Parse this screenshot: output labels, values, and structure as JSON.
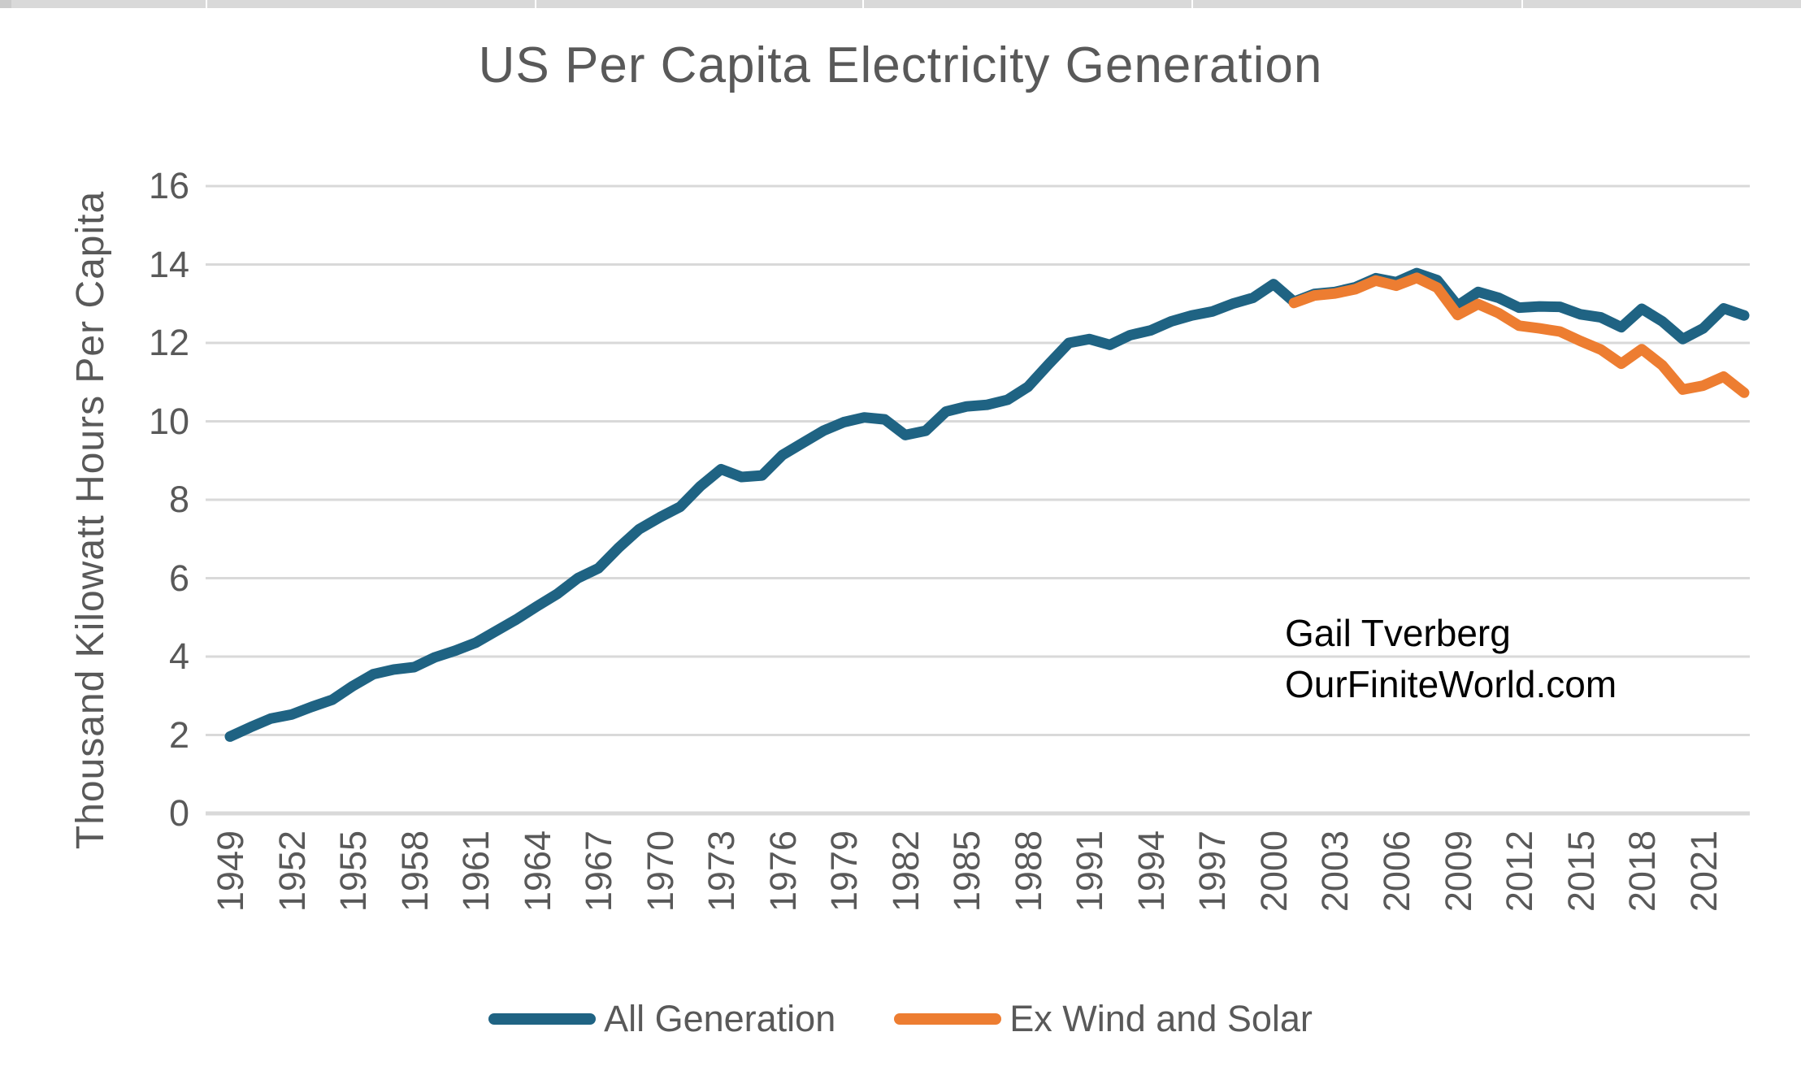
{
  "title": "US Per Capita Electricity Generation",
  "annotation": {
    "line1": "Gail Tverberg",
    "line2": "OurFiniteWorld.com"
  },
  "y_axis": {
    "title": "Thousand Kilowatt Hours Per Capita",
    "ticks": [
      0,
      2,
      4,
      6,
      8,
      10,
      12,
      14,
      16
    ]
  },
  "x_axis": {
    "ticks": [
      1949,
      1952,
      1955,
      1958,
      1961,
      1964,
      1967,
      1970,
      1973,
      1976,
      1979,
      1982,
      1985,
      1988,
      1991,
      1994,
      1997,
      2000,
      2003,
      2006,
      2009,
      2012,
      2015,
      2018,
      2021
    ]
  },
  "colors": {
    "all_generation": "#1F6383",
    "ex_wind_and_solar": "#ED7D31",
    "text_gray": "#595959",
    "annotation_text": "#000000",
    "gridline": "#D9D9D9",
    "top_strip": "#D9D9D9"
  },
  "chart_data": {
    "type": "line",
    "title": "US Per Capita Electricity Generation",
    "xlabel": "",
    "ylabel": "Thousand Kilowatt Hours Per Capita",
    "ylim": [
      0,
      16
    ],
    "y_tick_step": 2,
    "x_range": {
      "start": 1949,
      "end": 2023
    },
    "grid": "horizontal",
    "legend_position": "bottom",
    "series": [
      {
        "name": "All Generation",
        "color": "#1F6383",
        "start_year": 1949,
        "values": [
          1.96,
          2.2,
          2.42,
          2.52,
          2.72,
          2.9,
          3.25,
          3.55,
          3.67,
          3.73,
          3.98,
          4.15,
          4.35,
          4.65,
          4.95,
          5.28,
          5.6,
          6.0,
          6.25,
          6.78,
          7.25,
          7.55,
          7.82,
          8.35,
          8.78,
          8.58,
          8.62,
          9.14,
          9.45,
          9.76,
          9.98,
          10.1,
          10.05,
          9.65,
          9.76,
          10.25,
          10.38,
          10.42,
          10.55,
          10.88,
          11.45,
          12.0,
          12.1,
          11.95,
          12.2,
          12.32,
          12.55,
          12.7,
          12.8,
          13.0,
          13.15,
          13.5,
          13.05,
          13.25,
          13.3,
          13.42,
          13.65,
          13.55,
          13.78,
          13.6,
          12.95,
          13.3,
          13.15,
          12.9,
          12.93,
          12.92,
          12.73,
          12.65,
          12.4,
          12.87,
          12.55,
          12.1,
          12.37,
          12.88,
          12.7
        ]
      },
      {
        "name": "Ex Wind and Solar",
        "color": "#ED7D31",
        "start_year": 2001,
        "values": [
          13.02,
          13.21,
          13.26,
          13.37,
          13.59,
          13.46,
          13.66,
          13.41,
          12.71,
          12.99,
          12.76,
          12.44,
          12.37,
          12.29,
          12.05,
          11.83,
          11.47,
          11.84,
          11.43,
          10.81,
          10.91,
          11.14,
          10.73
        ]
      }
    ]
  }
}
